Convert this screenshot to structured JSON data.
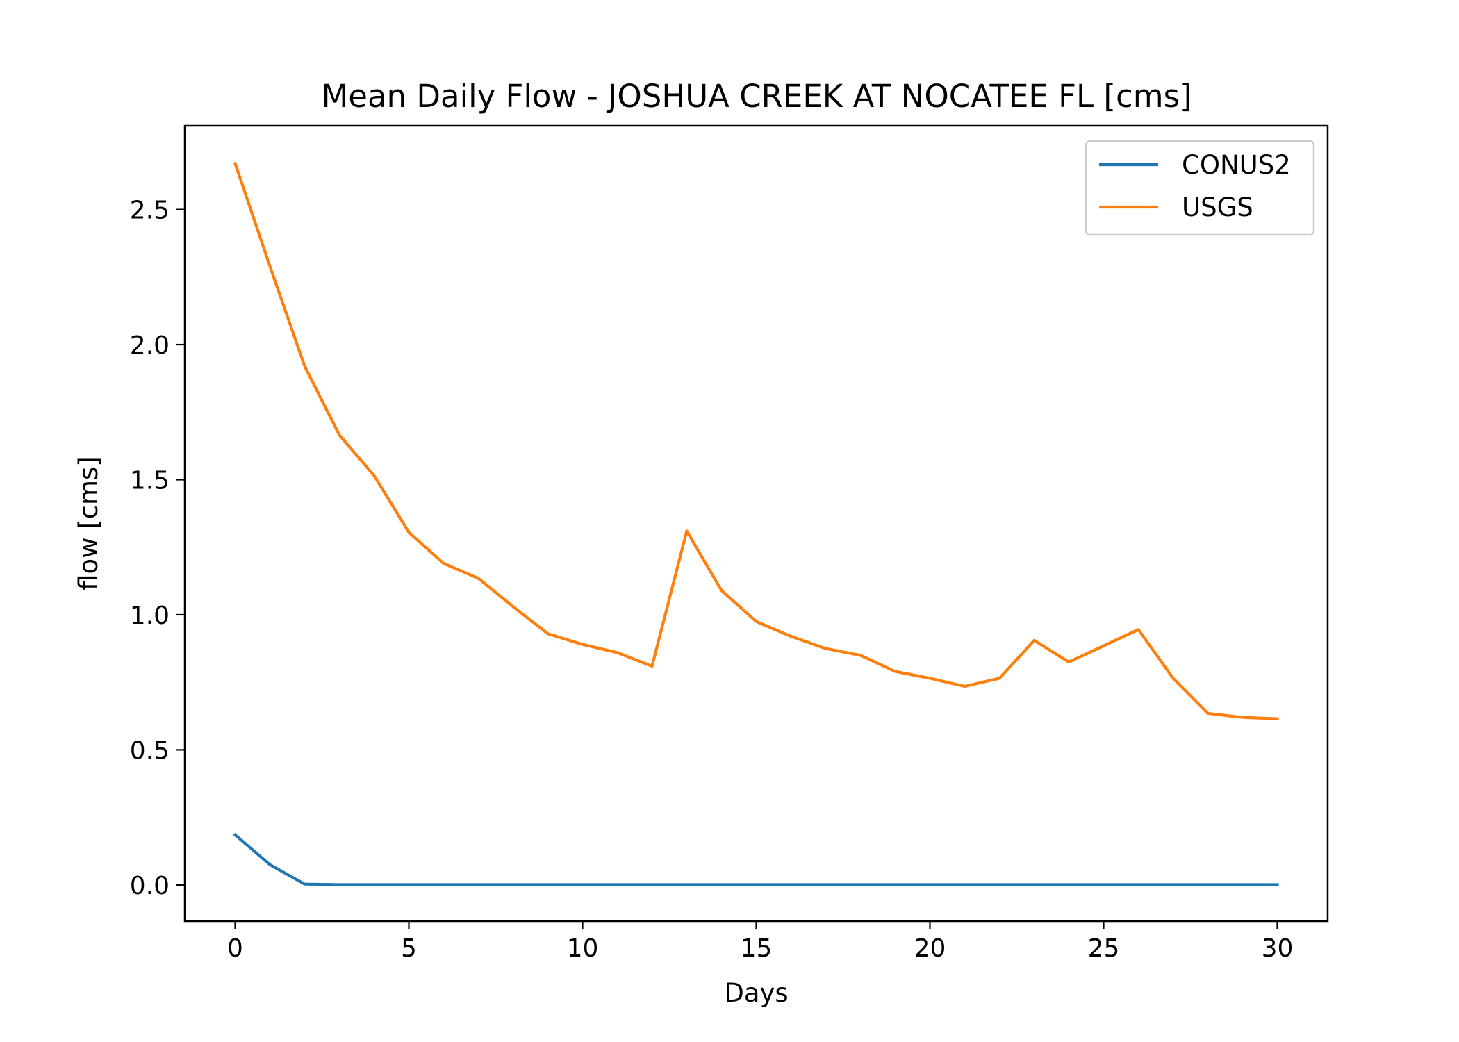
{
  "chart_data": {
    "type": "line",
    "title": "Mean Daily Flow - JOSHUA CREEK AT NOCATEE FL [cms]",
    "xlabel": "Days",
    "ylabel": "flow [cms]",
    "xlim": [
      -1.45,
      31.45
    ],
    "ylim": [
      -0.134,
      2.81
    ],
    "xticks": [
      0,
      5,
      10,
      15,
      20,
      25,
      30
    ],
    "xtick_labels": [
      "0",
      "5",
      "10",
      "15",
      "20",
      "25",
      "30"
    ],
    "yticks": [
      0.0,
      0.5,
      1.0,
      1.5,
      2.0,
      2.5
    ],
    "ytick_labels": [
      "0.0",
      "0.5",
      "1.0",
      "1.5",
      "2.0",
      "2.5"
    ],
    "grid": false,
    "legend_position": "upper right",
    "x": [
      0,
      1,
      2,
      3,
      4,
      5,
      6,
      7,
      8,
      9,
      10,
      11,
      12,
      13,
      14,
      15,
      16,
      17,
      18,
      19,
      20,
      21,
      22,
      23,
      24,
      25,
      26,
      27,
      28,
      29,
      30
    ],
    "series": [
      {
        "name": "CONUS2",
        "color": "#1f77b4",
        "values": [
          0.185,
          0.075,
          0.003,
          0.001,
          0.001,
          0.001,
          0.001,
          0.001,
          0.001,
          0.001,
          0.001,
          0.001,
          0.001,
          0.001,
          0.001,
          0.001,
          0.001,
          0.001,
          0.001,
          0.001,
          0.001,
          0.001,
          0.001,
          0.001,
          0.001,
          0.001,
          0.001,
          0.001,
          0.001,
          0.001,
          0.001
        ]
      },
      {
        "name": "USGS",
        "color": "#ff7f0e",
        "values": [
          2.67,
          2.29,
          1.92,
          1.665,
          1.515,
          1.305,
          1.19,
          1.135,
          1.03,
          0.93,
          0.89,
          0.86,
          0.81,
          1.31,
          1.09,
          0.975,
          0.92,
          0.875,
          0.85,
          0.79,
          0.765,
          0.735,
          0.765,
          0.905,
          0.825,
          0.885,
          0.945,
          0.765,
          0.635,
          0.62,
          0.615
        ]
      }
    ]
  }
}
